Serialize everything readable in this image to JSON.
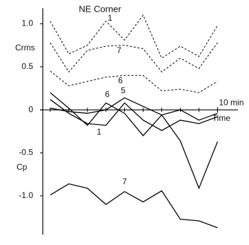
{
  "chart_data": {
    "type": "line",
    "title": "NE Corner",
    "y_labels": [
      "Crms",
      "Cp"
    ],
    "x_label": "Time",
    "xlim": [
      0.6,
      11.1
    ],
    "xticks": [
      {
        "value": 10,
        "label": "10 min"
      }
    ],
    "ylim": [
      -1.45,
      1.18
    ],
    "yticks": [
      {
        "value": 1,
        "label": "1.0"
      },
      {
        "value": 0.5,
        "label": "0.5"
      },
      0,
      {
        "value": -0.5,
        "label": "-0.5"
      },
      {
        "value": -1,
        "label": "-1.0"
      }
    ],
    "x": [
      1,
      2,
      3,
      4,
      5,
      6,
      7,
      8,
      9,
      10
    ],
    "series": [
      {
        "name": "1",
        "color": "#000000",
        "dash": true,
        "values": [
          1.03,
          0.65,
          0.75,
          1.03,
          0.81,
          1.1,
          0.6,
          0.74,
          0.62,
          0.98
        ]
      },
      {
        "name": "7",
        "color": "#000000",
        "dash": true,
        "values": [
          0.78,
          0.44,
          0.69,
          0.74,
          0.75,
          0.71,
          0.44,
          0.6,
          0.48,
          0.78
        ]
      },
      {
        "name": "6",
        "color": "#000000",
        "dash": true,
        "values": [
          0.45,
          0.28,
          0.33,
          0.38,
          0.4,
          0.4,
          0.22,
          0.24,
          0.2,
          0.33
        ]
      },
      {
        "name": "6",
        "color": "#000000",
        "dash": false,
        "values": [
          0.2,
          0.02,
          -0.18,
          0.08,
          -0.04,
          -0.3,
          -0.06,
          -0.36,
          -0.91,
          -0.37
        ]
      },
      {
        "name": "5",
        "color": "#000000",
        "dash": false,
        "values": [
          0.02,
          -0.02,
          -0.04,
          0.0,
          0.14,
          0.04,
          -0.06,
          0.0,
          -0.12,
          -0.04
        ]
      },
      {
        "name": "1",
        "color": "#000000",
        "dash": false,
        "values": [
          0.12,
          -0.04,
          -0.16,
          -0.18,
          0.08,
          -0.12,
          -0.24,
          -0.12,
          -0.16,
          -0.08
        ]
      },
      {
        "name": "7",
        "color": "#000000",
        "dash": false,
        "values": [
          -0.99,
          -0.86,
          -0.91,
          -1.1,
          -0.95,
          -1.07,
          -0.94,
          -1.27,
          -1.29,
          -1.37
        ]
      }
    ]
  }
}
